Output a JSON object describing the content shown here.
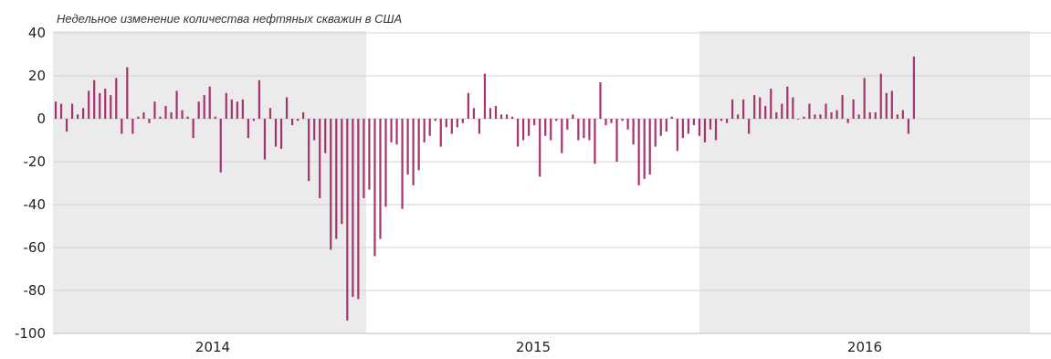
{
  "chart_data": {
    "type": "bar",
    "title": "Недельное изменение количества нефтяных скважин в США",
    "xlabel": "",
    "ylabel": "",
    "ylim": [
      -100,
      40
    ],
    "yticks": [
      40,
      20,
      0,
      -20,
      -40,
      -60,
      -80,
      -100
    ],
    "grid": true,
    "year_labels": [
      "2014",
      "2015",
      "2016"
    ],
    "shaded_years": [
      "2014",
      "2016"
    ],
    "colors": {
      "bar": "#a6336e",
      "shade": "#ebebeb",
      "grid": "#d2d2d2",
      "text": "#222222"
    },
    "series": [
      {
        "values": [
          8,
          7,
          -6,
          7,
          2,
          5,
          13,
          18,
          12,
          14,
          11,
          19,
          -7,
          24,
          -7,
          1,
          3,
          -2,
          8,
          1,
          6,
          3,
          13,
          4,
          1,
          -9,
          8,
          11,
          15,
          1,
          -25,
          12,
          9,
          8,
          9,
          -9,
          -1,
          18,
          -19,
          5,
          -13,
          -14,
          10,
          -3,
          -1,
          3,
          -29,
          -10,
          -37,
          -16,
          -61,
          -56,
          -49,
          -94,
          -83,
          -84,
          -37,
          -33,
          -64,
          -56,
          -41,
          -11,
          -12,
          -42,
          -26,
          -31,
          -24,
          -11,
          -8,
          -1,
          -13,
          -4,
          -7,
          -4,
          -2,
          12,
          5,
          -7,
          21,
          5,
          6,
          2,
          2,
          1,
          -13,
          -10,
          -8,
          -3,
          -27,
          -8,
          -10,
          -1,
          -16,
          -5,
          2,
          -10,
          -9,
          -10,
          -21,
          17,
          -3,
          -2,
          -20,
          -1,
          -5,
          -12,
          -31,
          -28,
          -26,
          -13,
          -8,
          -6,
          1,
          -15,
          -9,
          -7,
          -3,
          -8,
          -11,
          -5,
          -10,
          -1,
          -2,
          9,
          2,
          9,
          -7,
          11,
          10,
          6,
          14,
          3,
          7,
          15,
          10,
          0,
          1,
          7,
          2,
          2,
          7,
          3,
          4,
          11,
          -2,
          9,
          2,
          19,
          3,
          3,
          21,
          12,
          13,
          2,
          4,
          -7,
          29
        ]
      }
    ]
  }
}
